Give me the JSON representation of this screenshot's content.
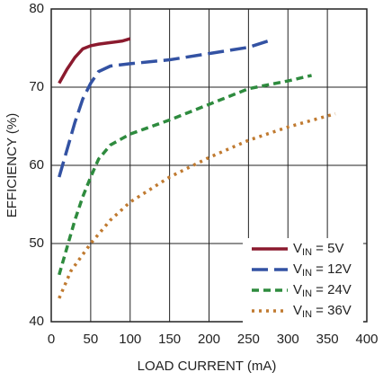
{
  "chart_data": {
    "type": "line",
    "xlabel": "LOAD CURRENT (mA)",
    "ylabel": "EFFICIENCY (%)",
    "xlim": [
      0,
      400
    ],
    "xticks": [
      0,
      50,
      100,
      150,
      200,
      250,
      300,
      350,
      400
    ],
    "ylim": [
      40,
      80
    ],
    "yticks": [
      40,
      50,
      60,
      70,
      80
    ],
    "grid": true,
    "legend": "lower right",
    "series": [
      {
        "name": "VIN = 5V",
        "color": "#8b1a2e",
        "dash": "solid",
        "x": [
          10,
          20,
          30,
          40,
          50,
          60,
          75,
          90,
          100
        ],
        "values": [
          70.5,
          72.3,
          73.8,
          74.9,
          75.3,
          75.5,
          75.7,
          75.9,
          76.2
        ]
      },
      {
        "name": "VIN = 12V",
        "color": "#3352a3",
        "dash": "long",
        "x": [
          10,
          20,
          30,
          40,
          50,
          60,
          75,
          100,
          150,
          200,
          250,
          278
        ],
        "values": [
          58.5,
          62,
          65.5,
          68.5,
          70.5,
          72,
          72.7,
          73,
          73.5,
          74.3,
          75.1,
          76
        ]
      },
      {
        "name": "VIN = 24V",
        "color": "#2e8b3e",
        "dash": "short",
        "x": [
          10,
          20,
          30,
          40,
          50,
          60,
          75,
          100,
          150,
          200,
          250,
          300,
          330
        ],
        "values": [
          46,
          49.5,
          53,
          56,
          58.5,
          60.8,
          62.6,
          64,
          65.8,
          67.8,
          69.8,
          70.8,
          71.5
        ]
      },
      {
        "name": "VIN = 36V",
        "color": "#c07a30",
        "dash": "dot",
        "x": [
          10,
          25,
          50,
          75,
          100,
          150,
          200,
          250,
          300,
          360
        ],
        "values": [
          43,
          46.5,
          50,
          53,
          55.3,
          58.5,
          61,
          63.2,
          64.9,
          66.6
        ]
      }
    ]
  }
}
